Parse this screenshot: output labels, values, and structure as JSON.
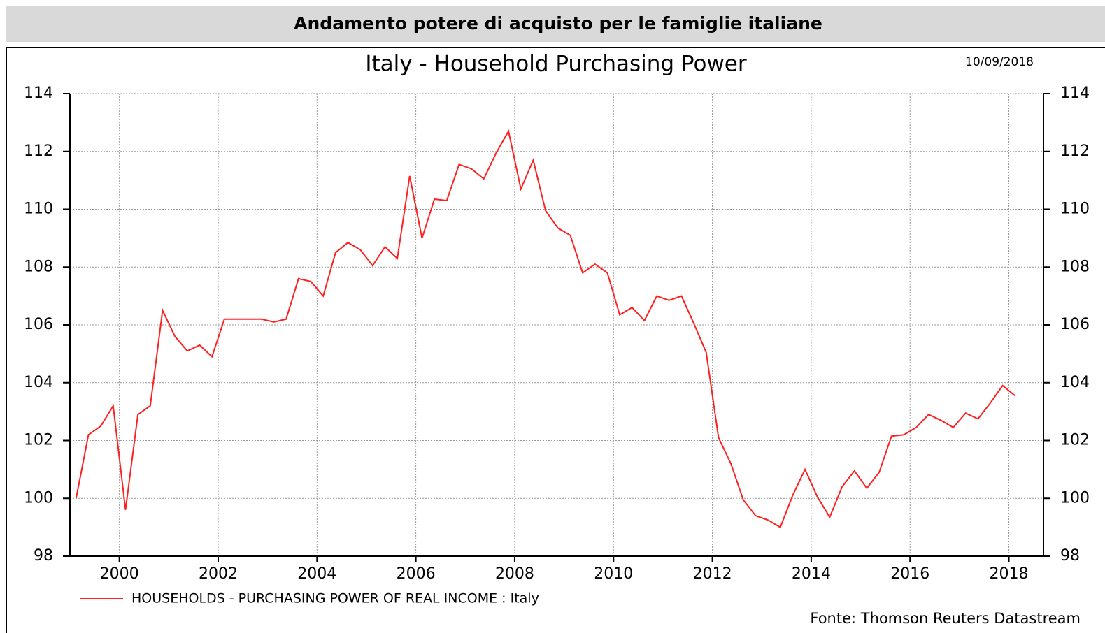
{
  "header": {
    "title": "Andamento potere di acquisto per le famiglie italiane"
  },
  "chart_data": {
    "type": "line",
    "title": "Italy - Household Purchasing Power",
    "date": "10/09/2018",
    "source": "Fonte: Thomson Reuters Datastream",
    "x": [
      1999.125,
      1999.375,
      1999.625,
      1999.875,
      2000.125,
      2000.375,
      2000.625,
      2000.875,
      2001.125,
      2001.375,
      2001.625,
      2001.875,
      2002.125,
      2002.375,
      2002.625,
      2002.875,
      2003.125,
      2003.375,
      2003.625,
      2003.875,
      2004.125,
      2004.375,
      2004.625,
      2004.875,
      2005.125,
      2005.375,
      2005.625,
      2005.875,
      2006.125,
      2006.375,
      2006.625,
      2006.875,
      2007.125,
      2007.375,
      2007.625,
      2007.875,
      2008.125,
      2008.375,
      2008.625,
      2008.875,
      2009.125,
      2009.375,
      2009.625,
      2009.875,
      2010.125,
      2010.375,
      2010.625,
      2010.875,
      2011.125,
      2011.375,
      2011.625,
      2011.875,
      2012.125,
      2012.375,
      2012.625,
      2012.875,
      2013.125,
      2013.375,
      2013.625,
      2013.875,
      2014.125,
      2014.375,
      2014.625,
      2014.875,
      2015.125,
      2015.375,
      2015.625,
      2015.875,
      2016.125,
      2016.375,
      2016.625,
      2016.875,
      2017.125,
      2017.375,
      2017.625,
      2017.875,
      2018.125
    ],
    "series": [
      {
        "name": "HOUSEHOLDS - PURCHASING POWER OF REAL INCOME : Italy",
        "color": "#ff2020",
        "values": [
          100.0,
          102.2,
          102.5,
          103.2,
          99.6,
          102.9,
          103.2,
          106.5,
          105.6,
          105.1,
          105.3,
          104.9,
          106.2,
          106.2,
          106.2,
          106.2,
          106.1,
          106.2,
          107.6,
          107.5,
          107.0,
          108.5,
          108.85,
          108.6,
          108.05,
          108.7,
          108.3,
          111.15,
          109.0,
          110.35,
          110.3,
          111.55,
          111.4,
          111.05,
          111.95,
          112.7,
          110.7,
          111.7,
          109.95,
          109.35,
          109.1,
          107.8,
          108.1,
          107.8,
          106.35,
          106.6,
          106.15,
          107.0,
          106.85,
          107.0,
          106.05,
          105.05,
          102.1,
          101.2,
          99.95,
          99.4,
          99.25,
          99.0,
          100.1,
          101.0,
          100.05,
          99.35,
          100.4,
          100.95,
          100.35,
          100.9,
          102.15,
          102.2,
          102.45,
          102.9,
          102.7,
          102.45,
          102.95,
          102.75,
          103.3,
          103.9,
          103.55
        ]
      }
    ],
    "xlim": [
      1999,
      2018.7
    ],
    "xticks": [
      2000,
      2002,
      2004,
      2006,
      2008,
      2010,
      2012,
      2014,
      2016,
      2018
    ],
    "ylim": [
      98,
      114
    ],
    "yticks": [
      98,
      100,
      102,
      104,
      106,
      108,
      110,
      112,
      114
    ],
    "grid": true
  }
}
